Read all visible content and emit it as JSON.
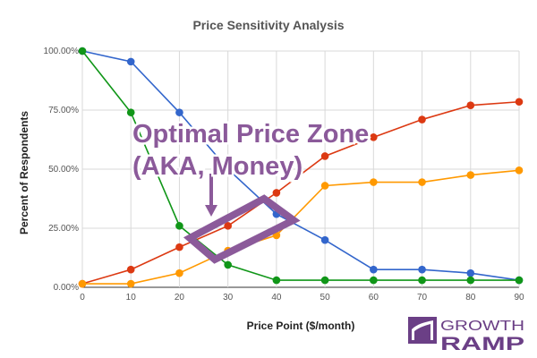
{
  "chart_data": {
    "type": "line",
    "title": "Price Sensitivity Analysis",
    "xlabel": "Price Point ($/month)",
    "ylabel": "Percent of Respondents",
    "x": [
      0,
      10,
      20,
      30,
      40,
      50,
      60,
      70,
      80,
      90
    ],
    "xlim": [
      0,
      90
    ],
    "ylim": [
      0,
      100
    ],
    "x_ticks": [
      "0",
      "10",
      "20",
      "30",
      "40",
      "50",
      "60",
      "70",
      "80",
      "90"
    ],
    "y_ticks": [
      "0.00%",
      "25.00%",
      "50.00%",
      "75.00%",
      "100.00%"
    ],
    "grid": true,
    "legend": "none",
    "series": [
      {
        "color": "#3366cc",
        "values": [
          100,
          95.5,
          74,
          50,
          31,
          20,
          7.5,
          7.5,
          6,
          3
        ]
      },
      {
        "color": "#dc3912",
        "values": [
          1.5,
          7.5,
          17,
          26,
          40,
          55.5,
          63.5,
          71,
          77,
          78.5
        ]
      },
      {
        "color": "#ff9900",
        "values": [
          1.5,
          1.5,
          6,
          15.5,
          22,
          43,
          44.5,
          44.5,
          47.5,
          49.5
        ]
      },
      {
        "color": "#109618",
        "values": [
          100,
          74,
          26,
          9.5,
          3,
          3,
          3,
          3,
          3,
          3
        ]
      }
    ]
  },
  "annotation": {
    "line1": "Optimal Price Zone",
    "line2": "(AKA, Money)",
    "color": "#8b5a9a"
  },
  "logo": {
    "line1": "GROWTH",
    "line2": "RAMP",
    "color": "#6b3f86"
  }
}
